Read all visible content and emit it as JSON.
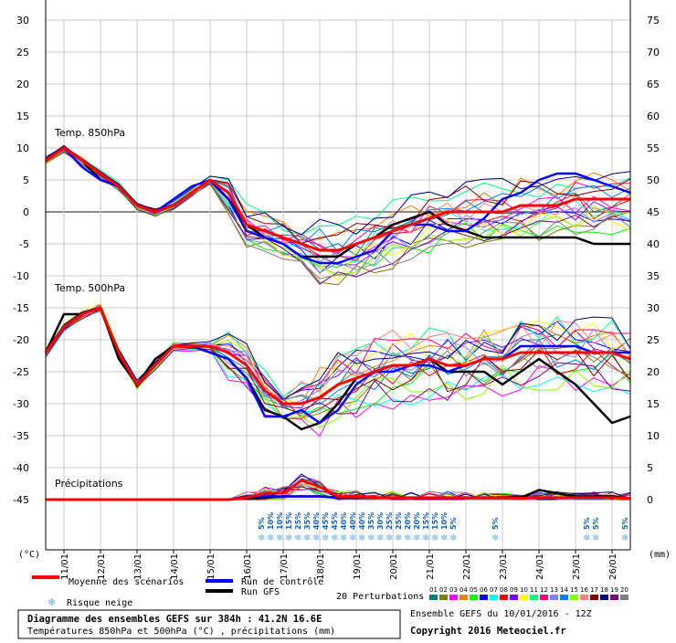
{
  "chart_data": {
    "type": "line",
    "title": "Diagramme des ensembles GEFS sur 384h : 41.2N 16.6E",
    "subtitle": "Températures 850hPa et 500hPa (°C) , précipitations (mm)",
    "left_axis_unit": "(°C)",
    "right_axis_unit": "(mm)",
    "left_ticks": [
      "30",
      "25",
      "20",
      "15",
      "10",
      "5",
      "0",
      "-5",
      "-10",
      "-15",
      "-20",
      "-25",
      "-30",
      "-35",
      "-40",
      "-45"
    ],
    "right_ticks": [
      "75",
      "70",
      "65",
      "60",
      "55",
      "50",
      "45",
      "40",
      "35",
      "30",
      "25",
      "20",
      "15",
      "10",
      "5",
      "0"
    ],
    "left_range": [
      -45,
      30
    ],
    "x_range_days": [
      10.5,
      26.5
    ],
    "dates": [
      "11/01",
      "12/01",
      "13/01",
      "14/01",
      "15/01",
      "16/01",
      "17/01",
      "18/01",
      "19/01",
      "20/01",
      "21/01",
      "22/01",
      "23/01",
      "24/01",
      "25/01",
      "26/01"
    ],
    "panel_labels": {
      "t850": "Temp. 850hPa",
      "t500": "Temp. 500hPa",
      "precip": "Précipitations"
    },
    "grid": true,
    "snow_risk": {
      "days": [
        16.4,
        16.65,
        16.9,
        17.15,
        17.4,
        17.65,
        17.9,
        18.15,
        18.4,
        18.65,
        18.9,
        19.15,
        19.4,
        19.65,
        19.9,
        20.15,
        20.4,
        20.65,
        20.9,
        21.15,
        21.4,
        21.65,
        22.8,
        25.3,
        25.55,
        26.35
      ],
      "labels": [
        "5%",
        "10%",
        "10%",
        "15%",
        "25%",
        "35%",
        "40%",
        "45%",
        "45%",
        "40%",
        "40%",
        "40%",
        "35%",
        "30%",
        "25%",
        "25%",
        "20%",
        "20%",
        "15%",
        "15%",
        "10%",
        "5%",
        "5%",
        "5%",
        "5%",
        "5%"
      ]
    },
    "series": [
      {
        "name": "Moyenne des scénarios",
        "color": "#ff0000",
        "days": [
          10.5,
          11,
          11.5,
          12,
          12.5,
          13,
          13.5,
          14,
          14.5,
          15,
          15.5,
          16,
          16.5,
          17,
          17.5,
          18,
          18.5,
          19,
          19.5,
          20,
          20.5,
          21,
          21.5,
          22,
          22.5,
          23,
          23.5,
          24,
          24.5,
          25,
          25.5,
          26,
          26.5
        ],
        "t850": [
          8,
          10,
          8,
          6,
          4,
          1,
          0,
          1,
          3,
          5,
          3,
          -2,
          -3,
          -4,
          -5,
          -6,
          -6,
          -5,
          -4,
          -3,
          -2,
          -1,
          0,
          0,
          0,
          0,
          1,
          1,
          1,
          2,
          2,
          2,
          2
        ],
        "t500": [
          -22,
          -18,
          -16,
          -15,
          -22,
          -27,
          -24,
          -21,
          -21,
          -21,
          -22,
          -24,
          -28,
          -30,
          -30,
          -29,
          -27,
          -26,
          -25,
          -24,
          -24,
          -23,
          -24,
          -24,
          -23,
          -23,
          -22,
          -22,
          -22,
          -22,
          -22,
          -22,
          -23
        ],
        "precip": [
          0,
          0,
          0,
          0,
          0,
          0,
          0,
          0,
          0,
          0,
          0,
          0.3,
          1,
          1,
          3,
          2,
          0.5,
          0.5,
          0.3,
          0.3,
          0.3,
          0.3,
          0.3,
          0.3,
          0.3,
          0.3,
          0.2,
          0.3,
          0.3,
          0.3,
          0.3,
          0.3,
          0.2
        ]
      },
      {
        "name": "Run de contrôle",
        "color": "#0000ff",
        "days": [
          10.5,
          11,
          11.5,
          12,
          12.5,
          13,
          13.5,
          14,
          14.5,
          15,
          15.5,
          16,
          16.5,
          17,
          17.5,
          18,
          18.5,
          19,
          19.5,
          20,
          20.5,
          21,
          21.5,
          22,
          22.5,
          23,
          23.5,
          24,
          24.5,
          25,
          25.5,
          26,
          26.5
        ],
        "t850": [
          8,
          10,
          7,
          5,
          4,
          1,
          0,
          2,
          4,
          5,
          2,
          -3,
          -4,
          -5,
          -7,
          -8,
          -8,
          -7,
          -6,
          -3,
          -2,
          -2,
          -3,
          -3,
          -1,
          2,
          3,
          5,
          6,
          6,
          5,
          4,
          3
        ],
        "t500": [
          -22,
          -18,
          -16,
          -15,
          -22,
          -27,
          -24,
          -21,
          -21,
          -22,
          -23,
          -26,
          -32,
          -32,
          -31,
          -33,
          -31,
          -27,
          -25,
          -25,
          -24,
          -24,
          -25,
          -24,
          -23,
          -23,
          -21,
          -21,
          -21,
          -21,
          -22,
          -22,
          -22
        ],
        "precip": [
          0,
          0,
          0,
          0,
          0,
          0,
          0,
          0,
          0,
          0,
          0,
          0.5,
          0.5,
          0.5,
          0.5,
          0.5,
          0.3,
          0.3,
          0.3,
          0.3,
          0.3,
          0.3,
          0.3,
          0.3,
          0.3,
          0.3,
          0.3,
          0.3,
          0.3,
          0.3,
          0.3,
          0.3,
          0.2
        ]
      },
      {
        "name": "Run GFS",
        "color": "#000000",
        "days": [
          10.5,
          11,
          11.5,
          12,
          12.5,
          13,
          13.5,
          14,
          14.5,
          15,
          15.5,
          16,
          16.5,
          17,
          17.5,
          18,
          18.5,
          19,
          19.5,
          20,
          20.5,
          21,
          21.5,
          22,
          22.5,
          23,
          23.5,
          24,
          24.5,
          25,
          25.5,
          26,
          26.5
        ],
        "t850": [
          8,
          10,
          8,
          5,
          4,
          1,
          0,
          1,
          3,
          5,
          2,
          -2,
          -4,
          -5,
          -7,
          -7,
          -7,
          -5,
          -4,
          -2,
          -1,
          0,
          -2,
          -3,
          -4,
          -4,
          -4,
          -4,
          -4,
          -4,
          -5,
          -5,
          -5
        ],
        "t500": [
          -22,
          -16,
          -16,
          -15,
          -23,
          -27,
          -23,
          -21,
          -21,
          -22,
          -23,
          -26,
          -31,
          -32,
          -34,
          -33,
          -30,
          -26,
          -25,
          -24,
          -24,
          -23,
          -25,
          -25,
          -25,
          -27,
          -25,
          -23,
          -25,
          -27,
          -30,
          -33,
          -32
        ],
        "precip": [
          0,
          0,
          0,
          0,
          0,
          0,
          0,
          0,
          0,
          0,
          0,
          0.2,
          0.3,
          0.5,
          0.5,
          0.5,
          0.3,
          0.3,
          0.3,
          0.3,
          0.3,
          0.3,
          0.3,
          0.3,
          0.3,
          0.3,
          0.3,
          1.5,
          1,
          0.5,
          0.5,
          0.5,
          0.2
        ]
      }
    ]
  },
  "legend": {
    "mean": "Moyenne des scénarios",
    "control": "Run de contrôle",
    "gfs": "Run GFS",
    "snow": "Risque neige",
    "perturbations": "20 Perturbations",
    "perturbation_numbers": [
      "01",
      "02",
      "03",
      "04",
      "05",
      "06",
      "07",
      "08",
      "09",
      "10",
      "11",
      "12",
      "13",
      "14",
      "15",
      "16",
      "17",
      "18",
      "19",
      "20"
    ],
    "perturbation_colors": [
      "#007f7f",
      "#7f7f00",
      "#ff00ff",
      "#ff7f00",
      "#00ff00",
      "#0000ff",
      "#00ffff",
      "#ff0000",
      "#7f00ff",
      "#ffff00",
      "#00ff7f",
      "#ff007f",
      "#7f7fff",
      "#007fff",
      "#7fff00",
      "#ff7f7f",
      "#7f0000",
      "#00007f",
      "#7f007f",
      "#7f7f7f"
    ]
  },
  "footer": {
    "title": "Diagramme des ensembles GEFS sur 384h : 41.2N 16.6E",
    "subtitle": "Températures 850hPa et 500hPa (°C) , précipitations (mm)",
    "run": "Ensemble GEFS du 10/01/2016 - 12Z",
    "copyright": "Copyright 2016 Meteociel.fr"
  }
}
